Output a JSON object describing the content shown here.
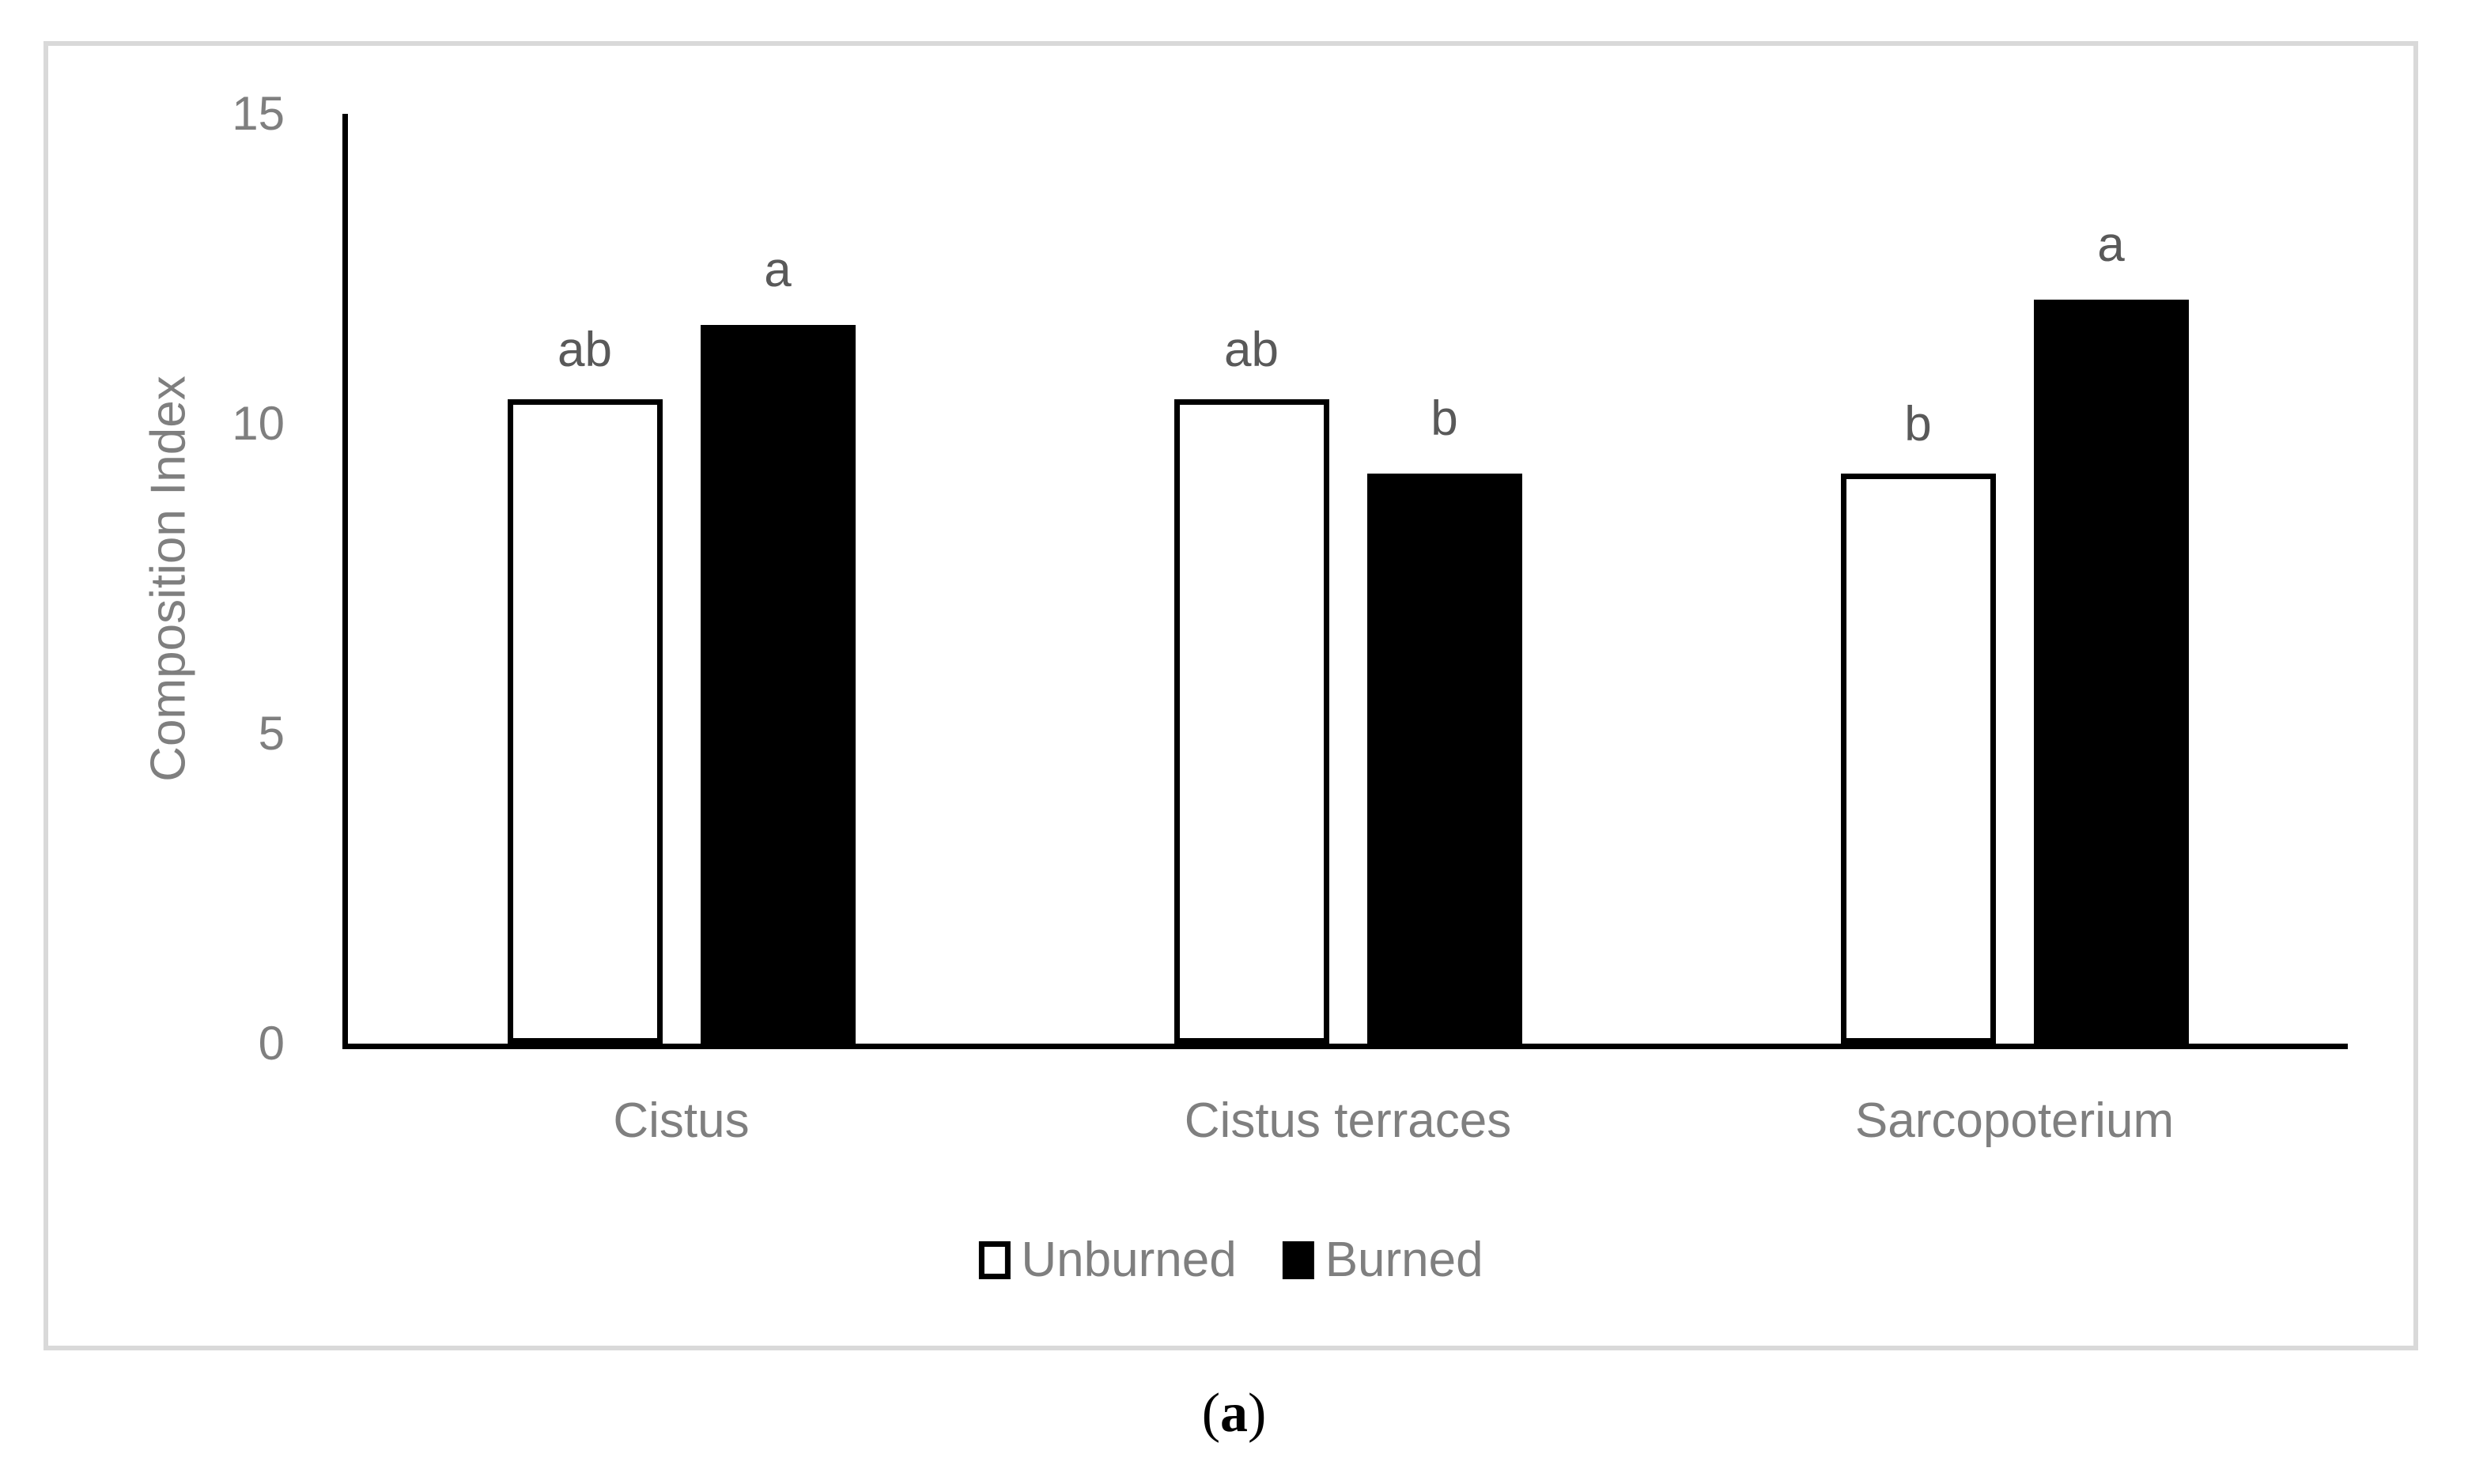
{
  "figure": {
    "caption": {
      "open": "(",
      "letter": "a",
      "close": ")"
    }
  },
  "chart_data": {
    "type": "bar",
    "title": "",
    "xlabel": "",
    "ylabel": "Composition Index",
    "ylim": [
      0,
      15
    ],
    "yticks": [
      0,
      5,
      10,
      15
    ],
    "grid": false,
    "legend_position": "bottom",
    "categories": [
      "Cistus",
      "Cistus terraces",
      "Sarcopoterium"
    ],
    "series": [
      {
        "name": "Unburned",
        "fill": "#ffffff",
        "outline": "#000000",
        "values": [
          10.4,
          10.4,
          9.2
        ],
        "letters": [
          "ab",
          "ab",
          "b"
        ]
      },
      {
        "name": "Burned",
        "fill": "#000000",
        "outline": null,
        "values": [
          11.6,
          9.2,
          12.0
        ],
        "letters": [
          "a",
          "b",
          "a"
        ]
      }
    ],
    "axis_text_color": "#7f7f7f",
    "annotation_color": "#595959",
    "axis_line_color": "#000000",
    "figure_border_color": "#d9d9d9"
  }
}
